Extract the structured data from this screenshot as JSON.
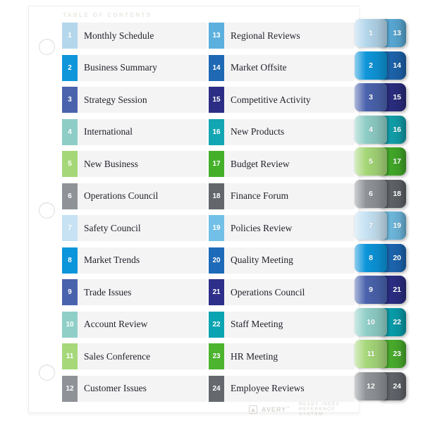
{
  "header": {
    "title": "TABLE OF CONTENTS"
  },
  "brand": {
    "name": "AVERY",
    "trademark": "™",
    "tagline": "READY INDEX REFERENCE SYSTEM"
  },
  "colors": {
    "page_bg": "#ffffff",
    "row_bg": "#f4f4f5",
    "label_text": "#22232b",
    "header_text": "#eae6e1",
    "brand_text": "#d8d5d1"
  },
  "toc": {
    "left": [
      {
        "num": "1",
        "label": "Monthly Schedule",
        "color": "#b4d7ec"
      },
      {
        "num": "2",
        "label": "Business Summary",
        "color": "#0f96da"
      },
      {
        "num": "3",
        "label": "Strategy Session",
        "color": "#4b63ad"
      },
      {
        "num": "4",
        "label": "International",
        "color": "#8ecdc6"
      },
      {
        "num": "5",
        "label": "New Business",
        "color": "#a5d778"
      },
      {
        "num": "6",
        "label": "Operations Council",
        "color": "#8f9397"
      },
      {
        "num": "7",
        "label": "Safety Council",
        "color": "#c6e2f3"
      },
      {
        "num": "8",
        "label": "Market Trends",
        "color": "#0b95da"
      },
      {
        "num": "9",
        "label": "Trade Issues",
        "color": "#4a63ad"
      },
      {
        "num": "10",
        "label": "Account Review",
        "color": "#90cfc8"
      },
      {
        "num": "11",
        "label": "Sales Conference",
        "color": "#a6d87a"
      },
      {
        "num": "12",
        "label": "Customer Issues",
        "color": "#8f9397"
      }
    ],
    "right": [
      {
        "num": "13",
        "label": "Regional Reviews",
        "color": "#5cb0de"
      },
      {
        "num": "14",
        "label": "Market Offsite",
        "color": "#1e68b4"
      },
      {
        "num": "15",
        "label": "Competitive Activity",
        "color": "#2c2e85"
      },
      {
        "num": "16",
        "label": "New Products",
        "color": "#12a6b2"
      },
      {
        "num": "17",
        "label": "Budget Review",
        "color": "#44b02a"
      },
      {
        "num": "18",
        "label": "Finance Forum",
        "color": "#63676b"
      },
      {
        "num": "19",
        "label": "Policies Review",
        "color": "#72c0e7"
      },
      {
        "num": "20",
        "label": "Quality Meeting",
        "color": "#1d6ab8"
      },
      {
        "num": "21",
        "label": "Operations Council",
        "color": "#2d2f8a"
      },
      {
        "num": "22",
        "label": "Staff Meeting",
        "color": "#0aa4b2"
      },
      {
        "num": "23",
        "label": "HR Meeting",
        "color": "#4cb42e"
      },
      {
        "num": "24",
        "label": "Employee Reviews",
        "color": "#65696e"
      }
    ]
  },
  "tabs": {
    "front_numbers": "1-12",
    "back_numbers": "13-24"
  }
}
